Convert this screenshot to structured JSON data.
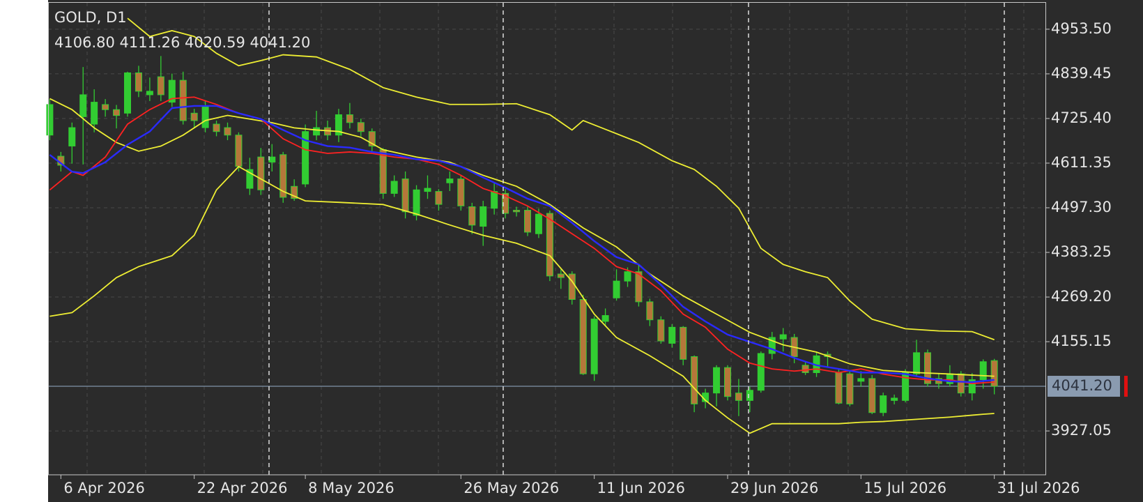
{
  "chart_data": {
    "type": "candlestick",
    "title": "GOLD, D1",
    "info": "4106.80 4111.26 4020.59 4041.20",
    "x": [
      0,
      1,
      2,
      3,
      4,
      5,
      6,
      7,
      8,
      9,
      10,
      11,
      12,
      13,
      14,
      15,
      16,
      17,
      18,
      19,
      20,
      21,
      22,
      23,
      24,
      25,
      26,
      27,
      28,
      29,
      30,
      31,
      32,
      33,
      34,
      35,
      36,
      37,
      38,
      39,
      40,
      41,
      42,
      43,
      44,
      45,
      46,
      47,
      48,
      49,
      50,
      51,
      52,
      53,
      54,
      55,
      56,
      57,
      58,
      59,
      60,
      61,
      62,
      63,
      64,
      65,
      66,
      67,
      68,
      69,
      70,
      71,
      72,
      73,
      74,
      75,
      76,
      77,
      78,
      79,
      80,
      81,
      82,
      83,
      84,
      85
    ],
    "open": [
      4683,
      4629,
      4655,
      4730,
      4711,
      4761,
      4748,
      4739,
      4842,
      4786,
      4832,
      4767,
      4823,
      4739,
      4702,
      4711,
      4702,
      4683,
      4547,
      4627,
      4614,
      4633,
      4552,
      4558,
      4683,
      4702,
      4683,
      4735,
      4715,
      4692,
      4646,
      4534,
      4571,
      4478,
      4539,
      4539,
      4561,
      4571,
      4500,
      4450,
      4496,
      4534,
      4491,
      4491,
      4431,
      4483,
      4328,
      4328,
      4263,
      4073,
      4207,
      4267,
      4310,
      4334,
      4257,
      4211,
      4151,
      4192,
      4117,
      4002,
      4024,
      4089,
      4024,
      4005,
      4031,
      4125,
      4162,
      4166,
      4095,
      4076,
      4123,
      4076,
      4073,
      4054,
      4061,
      3974,
      4005,
      4005,
      4073,
      4127,
      4061,
      4048,
      4073,
      4024,
      4058,
      4106.8
    ],
    "high": [
      4775,
      4640,
      4715,
      4857,
      4800,
      4775,
      4760,
      4845,
      4860,
      4830,
      4885,
      4840,
      4845,
      4750,
      4770,
      4720,
      4715,
      4690,
      4625,
      4650,
      4660,
      4640,
      4570,
      4710,
      4745,
      4720,
      4750,
      4765,
      4725,
      4700,
      4650,
      4580,
      4590,
      4555,
      4580,
      4545,
      4590,
      4580,
      4510,
      4515,
      4560,
      4545,
      4500,
      4500,
      4495,
      4490,
      4340,
      4335,
      4275,
      4220,
      4240,
      4340,
      4345,
      4350,
      4265,
      4220,
      4200,
      4195,
      4120,
      4035,
      4095,
      4095,
      4060,
      4040,
      4130,
      4180,
      4190,
      4175,
      4105,
      4130,
      4130,
      4085,
      4080,
      4080,
      4070,
      4025,
      4020,
      4085,
      4160,
      4135,
      4075,
      4095,
      4080,
      4075,
      4110,
      4111.26
    ],
    "low": [
      4670,
      4590,
      4610,
      4608,
      4690,
      4730,
      4700,
      4730,
      4780,
      4770,
      4770,
      4755,
      4710,
      4700,
      4690,
      4680,
      4670,
      4590,
      4530,
      4530,
      4590,
      4510,
      4515,
      4550,
      4670,
      4670,
      4665,
      4700,
      4680,
      4640,
      4520,
      4525,
      4470,
      4465,
      4520,
      4490,
      4540,
      4490,
      4430,
      4400,
      4480,
      4470,
      4475,
      4425,
      4420,
      4310,
      4290,
      4250,
      4070,
      4055,
      4195,
      4260,
      4295,
      4245,
      4195,
      4150,
      4140,
      4095,
      3975,
      3985,
      3990,
      4005,
      3965,
      3975,
      4025,
      4110,
      4130,
      4100,
      4070,
      4065,
      4090,
      3995,
      3990,
      4040,
      3970,
      3965,
      3995,
      4000,
      4065,
      4040,
      4035,
      4040,
      4015,
      4005,
      4035,
      4020.59
    ],
    "close": [
      4761,
      4606,
      4702,
      4786,
      4767,
      4748,
      4733,
      4842,
      4795,
      4795,
      4786,
      4823,
      4720,
      4720,
      4758,
      4692,
      4683,
      4603,
      4595,
      4543,
      4627,
      4524,
      4521,
      4692,
      4702,
      4683,
      4735,
      4715,
      4692,
      4655,
      4534,
      4565,
      4487,
      4543,
      4547,
      4506,
      4571,
      4502,
      4453,
      4500,
      4539,
      4483,
      4487,
      4435,
      4481,
      4323,
      4319,
      4263,
      4073,
      4213,
      4222,
      4310,
      4334,
      4257,
      4211,
      4157,
      4192,
      4110,
      3996,
      4024,
      4089,
      4015,
      4005,
      4031,
      4125,
      4166,
      4173,
      4117,
      4076,
      4119,
      4117,
      3998,
      3996,
      4061,
      3974,
      4017,
      4011,
      4076,
      4127,
      4048,
      4048,
      4073,
      4024,
      4058,
      4104,
      4041.2
    ],
    "bull_color": "#32cd32",
    "bear_color": "#b5773a",
    "wick_color": "#32cd32",
    "lines": [
      {
        "color": "#eeee33",
        "x": [
          7,
          9,
          11,
          13,
          15,
          17,
          19,
          21,
          24,
          27,
          30,
          33,
          36,
          39,
          42,
          45,
          47,
          48,
          50,
          53,
          56,
          58,
          60,
          62,
          64,
          66,
          68,
          70,
          72,
          74,
          77,
          80,
          83,
          85
        ],
        "values": [
          4981.5,
          4934.9,
          4949.8,
          4934.9,
          4891.9,
          4860.2,
          4873.3,
          4888.2,
          4882.6,
          4850.9,
          4804.2,
          4780,
          4761.3,
          4761.3,
          4763.1,
          4735.1,
          4696,
          4720.2,
          4697.8,
          4664.2,
          4617.5,
          4595.1,
          4552.2,
          4496.2,
          4393.6,
          4352.5,
          4333.8,
          4318.9,
          4259.1,
          4212.5,
          4188.2,
          4182.6,
          4180.8,
          4160.2
        ]
      },
      {
        "color": "#eeee33",
        "x": [
          0,
          2,
          4,
          6,
          8,
          10,
          12,
          14,
          16,
          18,
          20,
          22,
          24,
          26,
          28,
          30,
          33,
          36,
          39,
          42,
          45,
          48,
          51,
          54,
          57,
          60,
          63,
          66,
          69,
          72,
          75,
          78,
          81,
          85
        ],
        "values": [
          4776.2,
          4748.2,
          4701.5,
          4664.2,
          4641.8,
          4654.9,
          4682.9,
          4720.2,
          4733.3,
          4724,
          4714.6,
          4701.5,
          4696,
          4692.2,
          4677.3,
          4645.5,
          4626.9,
          4613.8,
          4580.2,
          4552.2,
          4505.6,
          4445.8,
          4397.3,
          4328.2,
          4272.2,
          4225.6,
          4178.9,
          4147.1,
          4128.5,
          4098.6,
          4081.8,
          4076.2,
          4072.5,
          4066.9
        ]
      },
      {
        "color": "#eeee33",
        "x": [
          0,
          2,
          4,
          6,
          8,
          10,
          11,
          13,
          15,
          17,
          19,
          21,
          23,
          26,
          30,
          33,
          36,
          39,
          42,
          45,
          47,
          49,
          51,
          54,
          57,
          59,
          61,
          63,
          65,
          68,
          71,
          73,
          75,
          78,
          81,
          84,
          85
        ],
        "values": [
          4220,
          4229.3,
          4272.2,
          4318.9,
          4346.9,
          4365.5,
          4374.9,
          4427,
          4542.9,
          4602.6,
          4570.9,
          4539.2,
          4514.9,
          4511.2,
          4505.6,
          4481.3,
          4453.3,
          4427,
          4406.6,
          4374.9,
          4309.6,
          4225.6,
          4165.8,
          4119.2,
          4066.9,
          4005.3,
          3960.5,
          3921.3,
          3945.6,
          3945.6,
          3945.6,
          3949.3,
          3951.2,
          3956.8,
          3962.4,
          3969.8,
          3971.7
        ]
      },
      {
        "color": "#ff2222",
        "x": [
          0,
          2,
          3,
          5,
          7,
          9,
          11,
          13,
          15,
          17,
          19,
          21,
          23,
          25,
          27,
          29,
          31,
          33,
          35,
          37,
          39,
          41,
          43,
          45,
          47,
          49,
          51,
          53,
          55,
          57,
          59,
          61,
          63,
          65,
          67,
          69,
          71,
          73,
          75,
          77,
          79,
          81,
          83,
          85
        ],
        "values": [
          4542.9,
          4589.6,
          4580.2,
          4626.9,
          4710.9,
          4748.2,
          4776.2,
          4780,
          4761.3,
          4738.9,
          4724,
          4673.6,
          4645.5,
          4636.2,
          4639.9,
          4636.2,
          4626.9,
          4621.3,
          4608.2,
          4580.2,
          4546.6,
          4527.9,
          4501.8,
          4468.2,
          4430.9,
          4393.6,
          4346.9,
          4328.2,
          4285.3,
          4225.6,
          4192,
          4136,
          4100.5,
          4085.6,
          4080,
          4085.6,
          4076.2,
          4085.6,
          4072.5,
          4063.1,
          4057.6,
          4057.6,
          4048.2,
          4051.9
        ]
      },
      {
        "color": "#2a2aff",
        "x": [
          0,
          2,
          3,
          5,
          7,
          9,
          11,
          13,
          15,
          17,
          19,
          21,
          23,
          25,
          27,
          29,
          31,
          33,
          35,
          37,
          39,
          41,
          43,
          45,
          47,
          49,
          51,
          53,
          55,
          57,
          59,
          61,
          63,
          65,
          67,
          69,
          71,
          73,
          75,
          77,
          79,
          81,
          83,
          85
        ],
        "values": [
          4632.5,
          4589.6,
          4585.8,
          4613.8,
          4658.6,
          4692.2,
          4752,
          4757.5,
          4757.5,
          4738.9,
          4724,
          4696,
          4669.8,
          4654.9,
          4651.1,
          4639.9,
          4632.5,
          4621.3,
          4617.5,
          4602.6,
          4574.6,
          4548.5,
          4520.5,
          4501.8,
          4458.9,
          4412.2,
          4371.2,
          4352.5,
          4300.2,
          4244.2,
          4206.9,
          4173.3,
          4154.6,
          4136,
          4113.6,
          4094.9,
          4085.6,
          4076.2,
          4076.2,
          4072.5,
          4061.3,
          4053.8,
          4051.9,
          4057.6
        ]
      }
    ],
    "xlim": [
      -0.15,
      89.6
    ],
    "ylim": [
      3815,
      5021
    ],
    "xticks": [
      {
        "value": 1,
        "label": "6 Apr 2026"
      },
      {
        "value": 13,
        "label": "22 Apr 2026"
      },
      {
        "value": 23,
        "label": "8 May 2026"
      },
      {
        "value": 37,
        "label": "26 May 2026"
      },
      {
        "value": 49,
        "label": "11 Jun 2026"
      },
      {
        "value": 61,
        "label": "29 Jun 2026"
      },
      {
        "value": 73,
        "label": "15 Jul 2026"
      },
      {
        "value": 85,
        "label": "31 Jul 2026"
      }
    ],
    "yticks": [
      {
        "value": 4953.5,
        "label": "4953.50"
      },
      {
        "value": 4839.45,
        "label": "4839.45"
      },
      {
        "value": 4725.4,
        "label": "4725.40"
      },
      {
        "value": 4611.35,
        "label": "4611.35"
      },
      {
        "value": 4497.3,
        "label": "4497.30"
      },
      {
        "value": 4383.25,
        "label": "4383.25"
      },
      {
        "value": 4269.2,
        "label": "4269.20"
      },
      {
        "value": 4155.15,
        "label": "4155.15"
      },
      {
        "value": 3927.05,
        "label": "3927.05"
      }
    ],
    "grid": true,
    "current_price": {
      "value": 4041.2,
      "label": "4041.20"
    }
  }
}
